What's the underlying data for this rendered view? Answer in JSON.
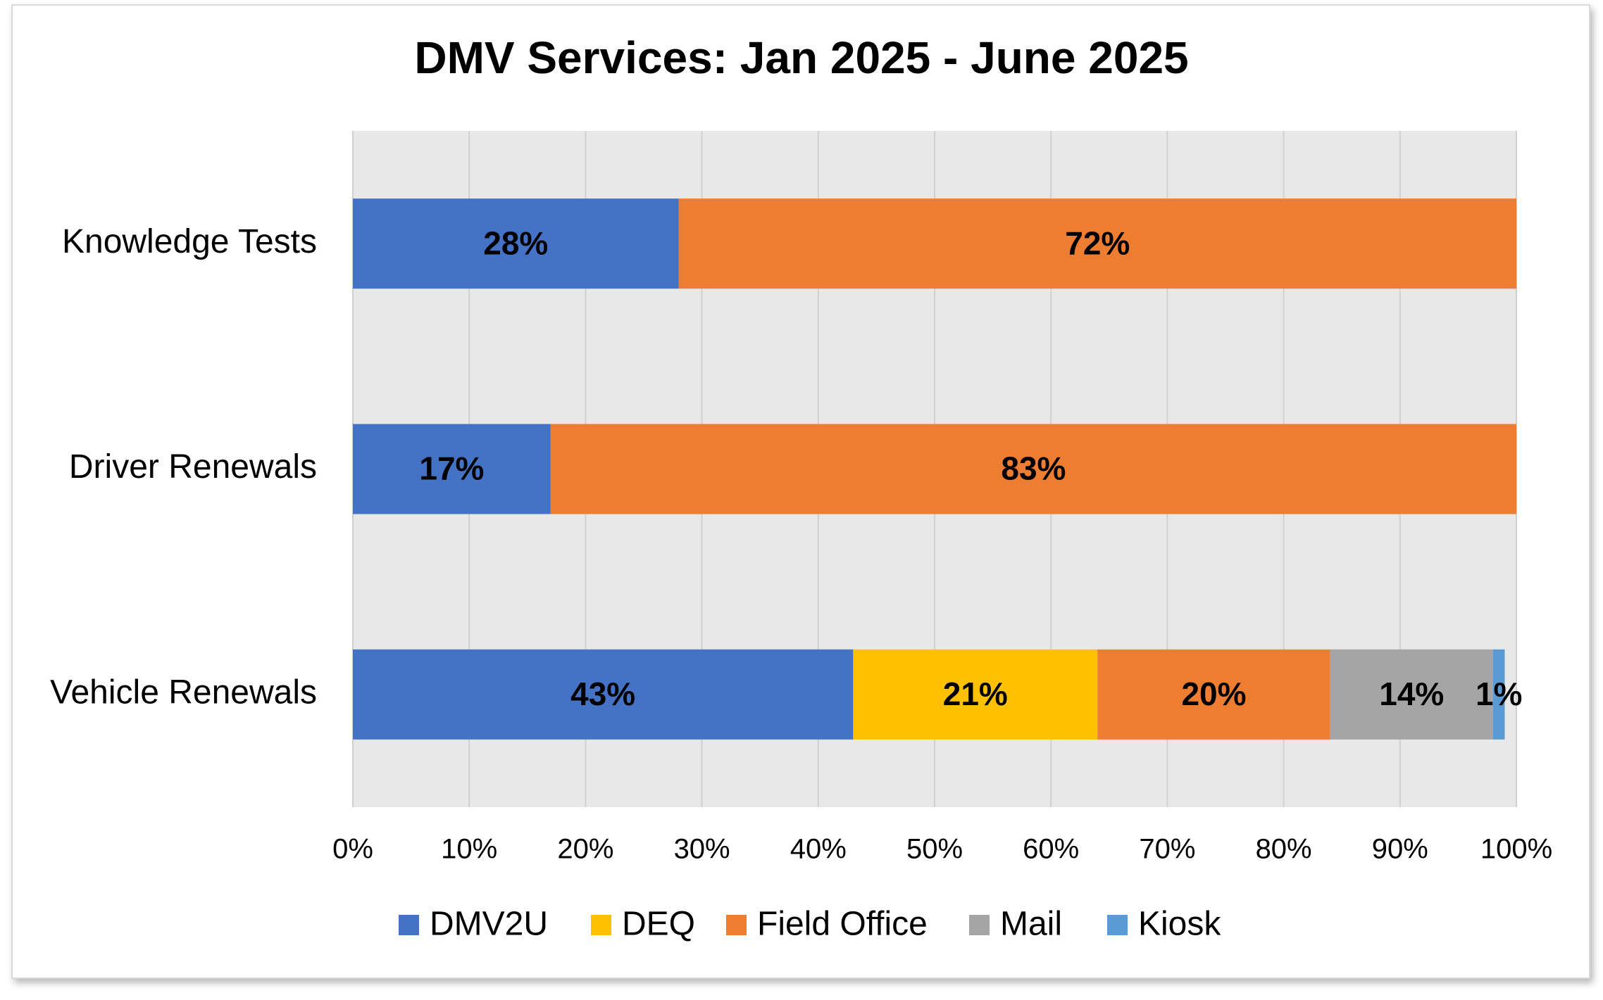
{
  "chart_data": {
    "type": "stacked_barh",
    "title": "DMV Services: Jan 2025 - June 2025",
    "categories": [
      "Knowledge Tests",
      "Driver Renewals",
      "Vehicle Renewals"
    ],
    "series": [
      {
        "name": "DMV2U",
        "color": "#4472c4",
        "values": [
          28,
          17,
          43
        ],
        "value_labels": [
          "28%",
          "17%",
          "43%"
        ]
      },
      {
        "name": "DEQ",
        "color": "#ffc000",
        "values": [
          null,
          null,
          21
        ],
        "value_labels": [
          null,
          null,
          "21%"
        ]
      },
      {
        "name": "Field Office",
        "color": "#ed7d31",
        "values": [
          72,
          83,
          20
        ],
        "value_labels": [
          "72%",
          "83%",
          "20%"
        ]
      },
      {
        "name": "Mail",
        "color": "#a5a5a5",
        "values": [
          null,
          null,
          14
        ],
        "value_labels": [
          null,
          null,
          "14%"
        ]
      },
      {
        "name": "Kiosk",
        "color": "#5b9bd5",
        "values": [
          null,
          null,
          1
        ],
        "value_labels": [
          null,
          null,
          "1%"
        ]
      }
    ],
    "xlim": [
      0,
      100
    ],
    "xticks": [
      {
        "value": 0,
        "label": "0%"
      },
      {
        "value": 10,
        "label": "10%"
      },
      {
        "value": 20,
        "label": "20%"
      },
      {
        "value": 30,
        "label": "30%"
      },
      {
        "value": 40,
        "label": "40%"
      },
      {
        "value": 50,
        "label": "50%"
      },
      {
        "value": 60,
        "label": "60%"
      },
      {
        "value": 70,
        "label": "70%"
      },
      {
        "value": 80,
        "label": "80%"
      },
      {
        "value": 90,
        "label": "90%"
      },
      {
        "value": 100,
        "label": "100%"
      }
    ],
    "grid": true,
    "legend": "bottom"
  }
}
